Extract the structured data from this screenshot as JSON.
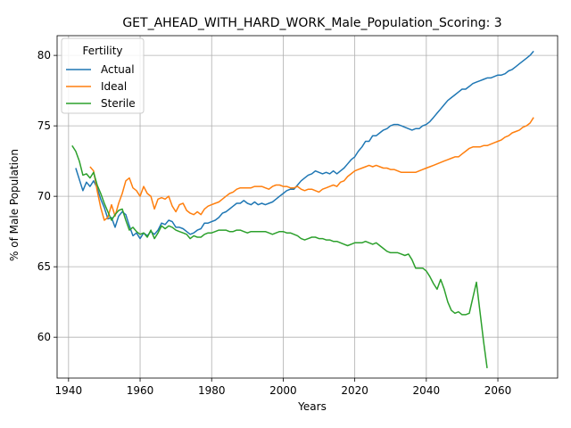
{
  "chart_data": {
    "type": "line",
    "title": "GET_AHEAD_WITH_HARD_WORK_Male_Population_Scoring: 3",
    "xlabel": "Years",
    "ylabel": "% of Male Population",
    "xlim": [
      1936.8,
      2076.7
    ],
    "ylim": [
      57.1,
      81.4
    ],
    "xticks": [
      1940,
      1960,
      1980,
      2000,
      2020,
      2040,
      2060
    ],
    "yticks": [
      60,
      65,
      70,
      75,
      80
    ],
    "grid": true,
    "legend": {
      "title": "Fertility",
      "placement": "top-left"
    },
    "series": [
      {
        "name": "Actual",
        "color": "#1f77b4",
        "x": [
          1942,
          1943,
          1944,
          1945,
          1946,
          1947,
          1948,
          1949,
          1950,
          1951,
          1952,
          1953,
          1954,
          1955,
          1956,
          1957,
          1958,
          1959,
          1960,
          1961,
          1962,
          1963,
          1964,
          1965,
          1966,
          1967,
          1968,
          1969,
          1970,
          1971,
          1972,
          1973,
          1974,
          1975,
          1976,
          1977,
          1978,
          1979,
          1980,
          1981,
          1982,
          1983,
          1984,
          1985,
          1986,
          1987,
          1988,
          1989,
          1990,
          1991,
          1992,
          1993,
          1994,
          1995,
          1996,
          1997,
          1998,
          1999,
          2000,
          2001,
          2002,
          2003,
          2004,
          2005,
          2006,
          2007,
          2008,
          2009,
          2010,
          2011,
          2012,
          2013,
          2014,
          2015,
          2016,
          2017,
          2018,
          2019,
          2020,
          2021,
          2022,
          2023,
          2024,
          2025,
          2026,
          2027,
          2028,
          2029,
          2030,
          2031,
          2032,
          2033,
          2034,
          2035,
          2036,
          2037,
          2038,
          2039,
          2040,
          2041,
          2042,
          2043,
          2044,
          2045,
          2046,
          2047,
          2048,
          2049,
          2050,
          2051,
          2052,
          2053,
          2054,
          2055,
          2056,
          2057,
          2058,
          2059,
          2060,
          2061,
          2062,
          2063,
          2064,
          2065,
          2066,
          2067,
          2068,
          2069,
          2070
        ],
        "values": [
          72.0,
          71.2,
          70.4,
          71.0,
          70.7,
          71.1,
          70.6,
          69.8,
          69.2,
          68.4,
          68.5,
          67.8,
          68.6,
          68.9,
          68.7,
          67.9,
          67.2,
          67.4,
          67.0,
          67.4,
          67.2,
          67.5,
          67.3,
          67.6,
          68.1,
          68.0,
          68.3,
          68.2,
          67.8,
          67.8,
          67.7,
          67.5,
          67.3,
          67.4,
          67.6,
          67.7,
          68.1,
          68.1,
          68.2,
          68.3,
          68.5,
          68.8,
          68.9,
          69.1,
          69.3,
          69.5,
          69.5,
          69.7,
          69.5,
          69.4,
          69.6,
          69.4,
          69.5,
          69.4,
          69.5,
          69.6,
          69.8,
          70.0,
          70.2,
          70.4,
          70.5,
          70.5,
          70.8,
          71.1,
          71.3,
          71.5,
          71.6,
          71.8,
          71.7,
          71.6,
          71.7,
          71.6,
          71.8,
          71.6,
          71.8,
          72.0,
          72.3,
          72.6,
          72.8,
          73.2,
          73.5,
          73.9,
          73.9,
          74.3,
          74.3,
          74.5,
          74.7,
          74.8,
          75.0,
          75.1,
          75.1,
          75.0,
          74.9,
          74.8,
          74.7,
          74.8,
          74.8,
          75.0,
          75.1,
          75.3,
          75.6,
          75.9,
          76.2,
          76.5,
          76.8,
          77.0,
          77.2,
          77.4,
          77.6,
          77.6,
          77.8,
          78.0,
          78.1,
          78.2,
          78.3,
          78.4,
          78.4,
          78.5,
          78.6,
          78.6,
          78.7,
          78.9,
          79.0,
          79.2,
          79.4,
          79.6,
          79.8,
          80.0,
          80.3
        ]
      },
      {
        "name": "Ideal",
        "color": "#ff7f0e",
        "x": [
          1946,
          1947,
          1948,
          1949,
          1950,
          1951,
          1952,
          1953,
          1954,
          1955,
          1956,
          1957,
          1958,
          1959,
          1960,
          1961,
          1962,
          1963,
          1964,
          1965,
          1966,
          1967,
          1968,
          1969,
          1970,
          1971,
          1972,
          1973,
          1974,
          1975,
          1976,
          1977,
          1978,
          1979,
          1980,
          1981,
          1982,
          1983,
          1984,
          1985,
          1986,
          1987,
          1988,
          1989,
          1990,
          1991,
          1992,
          1993,
          1994,
          1995,
          1996,
          1997,
          1998,
          1999,
          2000,
          2001,
          2002,
          2003,
          2004,
          2005,
          2006,
          2007,
          2008,
          2009,
          2010,
          2011,
          2012,
          2013,
          2014,
          2015,
          2016,
          2017,
          2018,
          2019,
          2020,
          2021,
          2022,
          2023,
          2024,
          2025,
          2026,
          2027,
          2028,
          2029,
          2030,
          2031,
          2032,
          2033,
          2034,
          2035,
          2036,
          2037,
          2038,
          2039,
          2040,
          2041,
          2042,
          2043,
          2044,
          2045,
          2046,
          2047,
          2048,
          2049,
          2050,
          2051,
          2052,
          2053,
          2054,
          2055,
          2056,
          2057,
          2058,
          2059,
          2060,
          2061,
          2062,
          2063,
          2064,
          2065,
          2066,
          2067,
          2068,
          2069,
          2070
        ],
        "values": [
          72.1,
          71.8,
          70.4,
          69.2,
          68.3,
          68.5,
          69.4,
          68.6,
          69.5,
          70.2,
          71.1,
          71.3,
          70.6,
          70.4,
          70.0,
          70.7,
          70.2,
          70.0,
          69.1,
          69.8,
          69.9,
          69.8,
          70.0,
          69.3,
          68.9,
          69.4,
          69.5,
          69.0,
          68.8,
          68.7,
          68.9,
          68.7,
          69.1,
          69.3,
          69.4,
          69.5,
          69.6,
          69.8,
          70.0,
          70.2,
          70.3,
          70.5,
          70.6,
          70.6,
          70.6,
          70.6,
          70.7,
          70.7,
          70.7,
          70.6,
          70.5,
          70.7,
          70.8,
          70.8,
          70.7,
          70.7,
          70.6,
          70.6,
          70.7,
          70.5,
          70.4,
          70.5,
          70.5,
          70.4,
          70.3,
          70.5,
          70.6,
          70.7,
          70.8,
          70.7,
          71.0,
          71.1,
          71.4,
          71.6,
          71.8,
          71.9,
          72.0,
          72.1,
          72.2,
          72.1,
          72.2,
          72.1,
          72.0,
          72.0,
          71.9,
          71.9,
          71.8,
          71.7,
          71.7,
          71.7,
          71.7,
          71.7,
          71.8,
          71.9,
          72.0,
          72.1,
          72.2,
          72.3,
          72.4,
          72.5,
          72.6,
          72.7,
          72.8,
          72.8,
          73.0,
          73.2,
          73.4,
          73.5,
          73.5,
          73.5,
          73.6,
          73.6,
          73.7,
          73.8,
          73.9,
          74.0,
          74.2,
          74.3,
          74.5,
          74.6,
          74.7,
          74.9,
          75.0,
          75.2,
          75.6
        ]
      },
      {
        "name": "Sterile",
        "color": "#2ca02c",
        "x": [
          1941,
          1942,
          1943,
          1944,
          1945,
          1946,
          1947,
          1948,
          1949,
          1950,
          1951,
          1952,
          1953,
          1954,
          1955,
          1956,
          1957,
          1958,
          1959,
          1960,
          1961,
          1962,
          1963,
          1964,
          1965,
          1966,
          1967,
          1968,
          1969,
          1970,
          1971,
          1972,
          1973,
          1974,
          1975,
          1976,
          1977,
          1978,
          1979,
          1980,
          1981,
          1982,
          1983,
          1984,
          1985,
          1986,
          1987,
          1988,
          1989,
          1990,
          1991,
          1992,
          1993,
          1994,
          1995,
          1996,
          1997,
          1998,
          1999,
          2000,
          2001,
          2002,
          2003,
          2004,
          2005,
          2006,
          2007,
          2008,
          2009,
          2010,
          2011,
          2012,
          2013,
          2014,
          2015,
          2016,
          2017,
          2018,
          2019,
          2020,
          2021,
          2022,
          2023,
          2024,
          2025,
          2026,
          2027,
          2028,
          2029,
          2030,
          2031,
          2032,
          2033,
          2034,
          2035,
          2036,
          2037,
          2038,
          2039,
          2040,
          2041,
          2042,
          2043,
          2044,
          2045,
          2046,
          2047,
          2048,
          2049,
          2050,
          2051,
          2052,
          2053,
          2054,
          2055,
          2056,
          2057
        ],
        "values": [
          73.6,
          73.2,
          72.5,
          71.5,
          71.6,
          71.3,
          71.7,
          70.8,
          70.2,
          69.5,
          68.9,
          68.3,
          68.7,
          69.0,
          69.1,
          68.3,
          67.6,
          67.8,
          67.5,
          67.3,
          67.4,
          67.1,
          67.6,
          67.0,
          67.4,
          67.9,
          67.7,
          67.9,
          67.8,
          67.6,
          67.5,
          67.4,
          67.3,
          67.0,
          67.2,
          67.1,
          67.1,
          67.3,
          67.4,
          67.4,
          67.5,
          67.6,
          67.6,
          67.6,
          67.5,
          67.5,
          67.6,
          67.6,
          67.5,
          67.4,
          67.5,
          67.5,
          67.5,
          67.5,
          67.5,
          67.4,
          67.3,
          67.4,
          67.5,
          67.5,
          67.4,
          67.4,
          67.3,
          67.2,
          67.0,
          66.9,
          67.0,
          67.1,
          67.1,
          67.0,
          67.0,
          66.9,
          66.9,
          66.8,
          66.8,
          66.7,
          66.6,
          66.5,
          66.6,
          66.7,
          66.7,
          66.7,
          66.8,
          66.7,
          66.6,
          66.7,
          66.5,
          66.3,
          66.1,
          66.0,
          66.0,
          66.0,
          65.9,
          65.8,
          65.9,
          65.5,
          64.9,
          64.9,
          64.9,
          64.7,
          64.3,
          63.8,
          63.4,
          64.1,
          63.4,
          62.5,
          61.9,
          61.7,
          61.8,
          61.6,
          61.6,
          61.7,
          62.8,
          63.9,
          61.8,
          59.7,
          57.8
        ]
      }
    ]
  }
}
